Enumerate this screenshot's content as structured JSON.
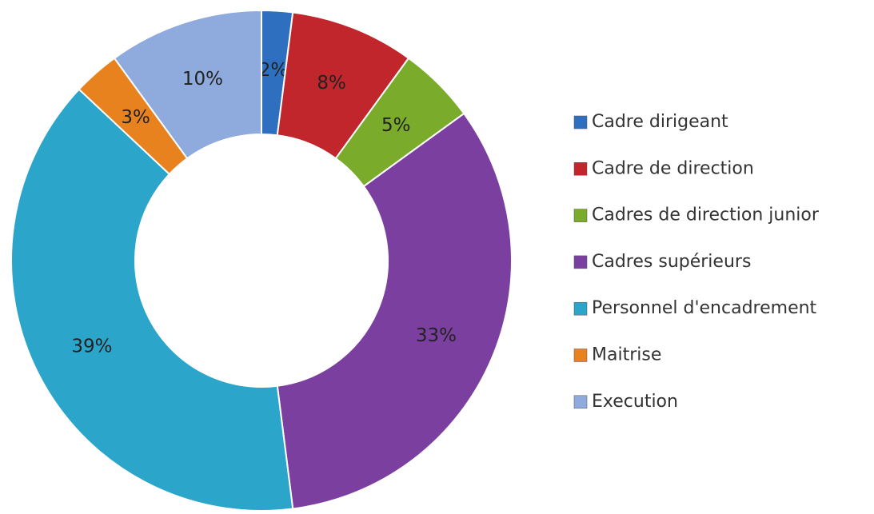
{
  "chart_data": {
    "type": "donut",
    "categories": [
      "Cadre dirigeant",
      "Cadre de direction",
      "Cadres de direction junior",
      "Cadres supérieurs",
      "Personnel d'encadrement",
      "Maitrise",
      "Execution"
    ],
    "values": [
      2,
      8,
      5,
      33,
      39,
      3,
      10
    ],
    "value_labels": [
      "2%",
      "8%",
      "5%",
      "33%",
      "39%",
      "3%",
      "10%"
    ],
    "colors": [
      "#2e6fc0",
      "#c0262b",
      "#7aab2a",
      "#7b3fa0",
      "#2ba5c9",
      "#e8821e",
      "#8faadc"
    ],
    "legend": "right"
  }
}
